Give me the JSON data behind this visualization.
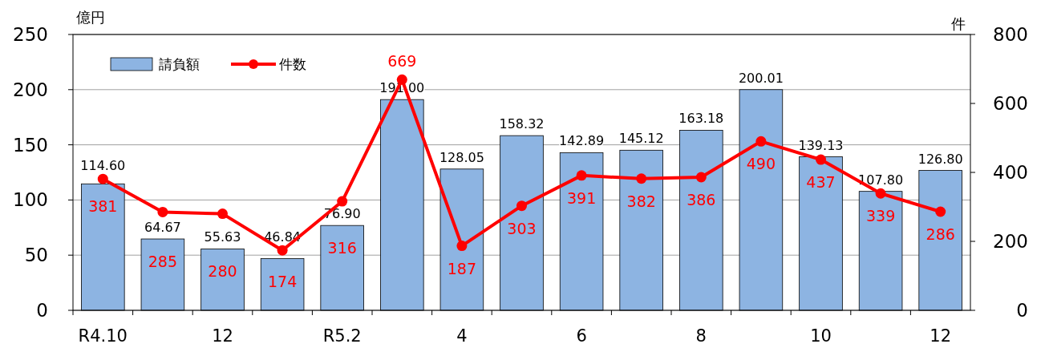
{
  "chart_data": {
    "type": "bar",
    "ylabel": "億円",
    "y2label": "件",
    "categories": [
      "R4.10",
      null,
      "12",
      null,
      "R5.2",
      null,
      "4",
      null,
      "6",
      null,
      "8",
      null,
      "10",
      null,
      "12"
    ],
    "ylim": [
      0,
      250
    ],
    "yticks": [
      0,
      50,
      100,
      150,
      200,
      250
    ],
    "y2lim": [
      0,
      800
    ],
    "y2ticks": [
      0,
      200,
      400,
      600,
      800
    ],
    "grid": "y",
    "legend": "top left",
    "series": [
      {
        "name": "請負額",
        "color": "#8db4e2",
        "values": [
          114.6,
          64.67,
          55.63,
          46.84,
          76.9,
          191.0,
          128.05,
          158.32,
          142.89,
          145.12,
          163.18,
          200.01,
          139.13,
          107.8,
          126.8
        ],
        "value_labels": [
          "114.60",
          "64.67",
          "55.63",
          "46.84",
          "76.90",
          "191.00",
          "128.05",
          "158.32",
          "142.89",
          "145.12",
          "163.18",
          "200.01",
          "139.13",
          "107.80",
          "126.80"
        ]
      },
      {
        "name": "件数",
        "type": "line",
        "axis": "y2",
        "color": "#ff0000",
        "marker": "circle",
        "values": [
          381,
          285,
          280,
          174,
          316,
          669,
          187,
          303,
          391,
          382,
          386,
          490,
          437,
          339,
          286
        ],
        "value_labels": [
          "381",
          "285",
          "280",
          "174",
          "316",
          "669",
          "187",
          "303",
          "391",
          "382",
          "386",
          "490",
          "437",
          "339",
          "286"
        ]
      }
    ]
  }
}
